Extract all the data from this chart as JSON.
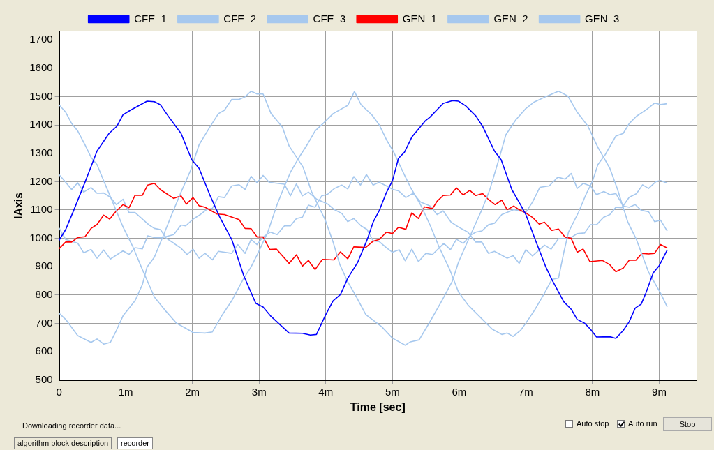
{
  "chart_data": {
    "type": "line",
    "xlabel": "Time [sec]",
    "ylabel": "IAxis",
    "legend": "top",
    "grid": true,
    "marker": "none",
    "line_style": "solid",
    "xlim": [
      0,
      9.56
    ],
    "ylim": [
      500,
      1730
    ],
    "xticks": [
      {
        "value": 0,
        "label": "0"
      },
      {
        "value": 1,
        "label": "1m"
      },
      {
        "value": 2,
        "label": "2m"
      },
      {
        "value": 3,
        "label": "3m"
      },
      {
        "value": 4,
        "label": "4m"
      },
      {
        "value": 5,
        "label": "5m"
      },
      {
        "value": 6,
        "label": "6m"
      },
      {
        "value": 7,
        "label": "7m"
      },
      {
        "value": 8,
        "label": "8m"
      },
      {
        "value": 9,
        "label": "9m"
      }
    ],
    "yticks": [
      500,
      600,
      700,
      800,
      900,
      1000,
      1100,
      1200,
      1300,
      1400,
      1500,
      1600,
      1700
    ],
    "series": [
      {
        "name": "CFE_1",
        "color": "#0000ff",
        "x": [
          0,
          0.1,
          0.21,
          0.39,
          0.57,
          0.75,
          0.87,
          0.96,
          1.07,
          1.32,
          1.43,
          1.52,
          1.65,
          1.83,
          1.99,
          2.1,
          2.26,
          2.41,
          2.59,
          2.77,
          2.95,
          3.06,
          3.17,
          3.45,
          3.65,
          3.77,
          3.86,
          4.0,
          4.11,
          4.22,
          4.33,
          4.48,
          4.62,
          4.71,
          4.8,
          4.91,
          5.0,
          5.09,
          5.18,
          5.29,
          5.49,
          5.56,
          5.76,
          5.9,
          5.99,
          6.1,
          6.25,
          6.35,
          6.53,
          6.63,
          6.79,
          6.92,
          7.0,
          7.14,
          7.3,
          7.39,
          7.57,
          7.68,
          7.77,
          7.88,
          7.97,
          8.06,
          8.26,
          8.35,
          8.46,
          8.55,
          8.64,
          8.73,
          8.8,
          8.91,
          9.0,
          9.12
        ],
        "values": [
          993,
          1031,
          1093,
          1198,
          1308,
          1370,
          1396,
          1436,
          1452,
          1484,
          1482,
          1471,
          1427,
          1370,
          1277,
          1247,
          1154,
          1075,
          996,
          868,
          771,
          758,
          727,
          666,
          665,
          659,
          661,
          731,
          780,
          802,
          859,
          916,
          995,
          1057,
          1097,
          1162,
          1203,
          1282,
          1304,
          1357,
          1414,
          1427,
          1476,
          1486,
          1484,
          1467,
          1432,
          1396,
          1308,
          1277,
          1172,
          1119,
          1084,
          996,
          899,
          855,
          776,
          750,
          714,
          701,
          679,
          652,
          653,
          647,
          675,
          706,
          754,
          768,
          807,
          878,
          904,
          959
        ]
      },
      {
        "name": "CFE_2",
        "color": "#a6c8ee",
        "x": [
          0,
          0.1,
          0.28,
          0.48,
          0.57,
          0.67,
          0.77,
          0.85,
          0.96,
          1.14,
          1.25,
          1.32,
          1.43,
          1.54,
          1.69,
          1.83,
          1.97,
          2.1,
          2.26,
          2.39,
          2.48,
          2.59,
          2.7,
          2.79,
          2.88,
          2.97,
          3.06,
          3.18,
          3.35,
          3.45,
          3.66,
          3.79,
          3.99,
          4.11,
          4.21,
          4.33,
          4.44,
          4.6,
          4.84,
          5.0,
          5.19,
          5.27,
          5.4,
          5.56,
          5.74,
          5.9,
          5.99,
          6.14,
          6.35,
          6.46,
          6.61,
          6.7,
          6.85,
          7.0,
          7.12,
          7.32,
          7.49,
          7.63,
          7.77,
          7.93,
          8.08,
          8.26,
          8.37,
          8.53,
          8.66,
          8.84,
          9.02,
          9.12
        ],
        "values": [
          736,
          714,
          657,
          633,
          645,
          627,
          633,
          670,
          727,
          780,
          837,
          899,
          934,
          996,
          1084,
          1163,
          1238,
          1330,
          1392,
          1440,
          1452,
          1490,
          1490,
          1499,
          1519,
          1509,
          1509,
          1440,
          1392,
          1326,
          1251,
          1163,
          1066,
          987,
          908,
          846,
          802,
          731,
          688,
          648,
          623,
          635,
          642,
          705,
          780,
          850,
          916,
          996,
          1106,
          1172,
          1290,
          1365,
          1418,
          1458,
          1480,
          1502,
          1519,
          1502,
          1445,
          1396,
          1321,
          1247,
          1176,
          1057,
          995,
          881,
          807,
          758
        ]
      },
      {
        "name": "CFE_3",
        "color": "#a6c8ee",
        "x": [
          0,
          0.1,
          0.19,
          0.28,
          0.39,
          0.48,
          0.57,
          0.67,
          0.82,
          0.96,
          1.11,
          1.25,
          1.43,
          1.58,
          1.76,
          1.9,
          2.01,
          2.19,
          2.3,
          2.44,
          2.59,
          2.77,
          2.88,
          2.99,
          3.13,
          3.27,
          3.36,
          3.47,
          3.59,
          3.72,
          3.84,
          4.0,
          4.11,
          4.33,
          4.43,
          4.53,
          4.69,
          4.8,
          4.91,
          5.02,
          5.16,
          5.27,
          5.42,
          5.56,
          5.7,
          5.85,
          5.99,
          6.14,
          6.35,
          6.5,
          6.64,
          6.72,
          6.81,
          6.92,
          7.0,
          7.14,
          7.28,
          7.39,
          7.49,
          7.57,
          7.64,
          7.79,
          7.9,
          8.0,
          8.08,
          8.19,
          8.35,
          8.46,
          8.55,
          8.66,
          8.8,
          8.93,
          9.02,
          9.12
        ],
        "values": [
          1471,
          1445,
          1405,
          1379,
          1330,
          1286,
          1260,
          1203,
          1119,
          1040,
          969,
          890,
          793,
          749,
          701,
          683,
          668,
          666,
          670,
          727,
          780,
          859,
          899,
          951,
          1022,
          1119,
          1172,
          1233,
          1282,
          1330,
          1379,
          1414,
          1440,
          1469,
          1518,
          1471,
          1436,
          1401,
          1348,
          1304,
          1233,
          1180,
          1119,
          1049,
          969,
          895,
          811,
          763,
          714,
          679,
          661,
          666,
          654,
          675,
          701,
          750,
          807,
          855,
          860,
          951,
          1022,
          1092,
          1154,
          1202,
          1260,
          1295,
          1361,
          1370,
          1405,
          1431,
          1453,
          1477,
          1472,
          1475
        ]
      },
      {
        "name": "GEN_1",
        "color": "#ff0000",
        "x": [
          0,
          0.1,
          0.19,
          0.28,
          0.39,
          0.48,
          0.57,
          0.67,
          0.76,
          0.86,
          0.96,
          1.05,
          1.14,
          1.25,
          1.33,
          1.43,
          1.52,
          1.72,
          1.83,
          1.91,
          2.01,
          2.1,
          2.19,
          2.37,
          2.48,
          2.7,
          2.79,
          2.88,
          2.97,
          3.06,
          3.16,
          3.26,
          3.45,
          3.56,
          3.65,
          3.74,
          3.84,
          3.95,
          4.12,
          4.22,
          4.33,
          4.42,
          4.6,
          4.71,
          4.8,
          4.91,
          5.0,
          5.09,
          5.2,
          5.29,
          5.39,
          5.48,
          5.6,
          5.67,
          5.76,
          5.87,
          5.96,
          6.06,
          6.16,
          6.25,
          6.35,
          6.44,
          6.54,
          6.64,
          6.72,
          6.82,
          6.9,
          7.0,
          7.1,
          7.2,
          7.28,
          7.39,
          7.49,
          7.59,
          7.68,
          7.77,
          7.86,
          7.96,
          8.15,
          8.26,
          8.35,
          8.46,
          8.55,
          8.65,
          8.74,
          8.84,
          8.93,
          9.02,
          9.12
        ],
        "values": [
          963,
          987,
          987,
          1003,
          1006,
          1035,
          1049,
          1082,
          1068,
          1097,
          1119,
          1108,
          1152,
          1152,
          1188,
          1194,
          1172,
          1141,
          1150,
          1121,
          1144,
          1115,
          1110,
          1086,
          1084,
          1066,
          1035,
          1034,
          1005,
          1005,
          961,
          962,
          912,
          942,
          902,
          922,
          890,
          926,
          924,
          952,
          928,
          970,
          968,
          990,
          996,
          1022,
          1017,
          1039,
          1032,
          1090,
          1070,
          1111,
          1105,
          1131,
          1151,
          1153,
          1178,
          1153,
          1169,
          1151,
          1158,
          1137,
          1119,
          1135,
          1101,
          1114,
          1101,
          1090,
          1074,
          1050,
          1057,
          1028,
          1033,
          1004,
          1000,
          951,
          962,
          918,
          922,
          907,
          882,
          895,
          923,
          923,
          947,
          945,
          947,
          978,
          966
        ]
      },
      {
        "name": "GEN_2",
        "color": "#a6c8ee",
        "x": [
          0,
          0.1,
          0.28,
          0.37,
          0.48,
          0.57,
          0.67,
          0.77,
          0.86,
          0.96,
          1.05,
          1.14,
          1.25,
          1.33,
          1.43,
          1.54,
          1.72,
          1.83,
          1.9,
          2.01,
          2.12,
          2.21,
          2.3,
          2.39,
          2.48,
          2.59,
          2.7,
          2.79,
          2.88,
          2.97,
          3.06,
          3.15,
          3.27,
          3.38,
          3.47,
          3.56,
          3.65,
          3.74,
          3.86,
          4.03,
          4.13,
          4.24,
          4.33,
          4.42,
          4.53,
          4.62,
          4.71,
          4.8,
          4.91,
          5.0,
          5.1,
          5.19,
          5.29,
          5.39,
          5.5,
          5.6,
          5.77,
          5.87,
          5.96,
          6.06,
          6.17,
          6.25,
          6.34,
          6.44,
          6.53,
          6.64,
          6.82,
          7.0,
          7.1,
          7.21,
          7.35,
          7.48,
          7.59,
          7.68,
          7.77,
          7.86,
          7.97,
          8.06,
          8.17,
          8.26,
          8.35,
          8.46,
          8.55,
          8.64,
          8.73,
          8.84,
          8.93,
          9.02,
          9.12
        ],
        "values": [
          1037,
          996,
          983,
          949,
          961,
          930,
          959,
          927,
          941,
          956,
          943,
          967,
          963,
          1009,
          1003,
          1002,
          1013,
          1047,
          1044,
          1068,
          1084,
          1101,
          1106,
          1147,
          1144,
          1185,
          1189,
          1172,
          1219,
          1196,
          1222,
          1198,
          1194,
          1191,
          1150,
          1192,
          1150,
          1163,
          1139,
          1121,
          1101,
          1088,
          1059,
          1070,
          1044,
          1031,
          991,
          989,
          967,
          951,
          960,
          921,
          962,
          918,
          947,
          943,
          982,
          960,
          997,
          982,
          1011,
          1022,
          1026,
          1048,
          1053,
          1084,
          1101,
          1092,
          1128,
          1180,
          1185,
          1216,
          1209,
          1229,
          1176,
          1194,
          1185,
          1154,
          1165,
          1154,
          1158,
          1114,
          1110,
          1119,
          1099,
          1094,
          1059,
          1064,
          1026
        ]
      },
      {
        "name": "GEN_3",
        "color": "#a6c8ee",
        "x": [
          0,
          0.1,
          0.19,
          0.28,
          0.37,
          0.48,
          0.57,
          0.67,
          0.77,
          0.86,
          0.96,
          1.05,
          1.14,
          1.34,
          1.43,
          1.52,
          1.61,
          1.72,
          1.83,
          1.92,
          2.01,
          2.1,
          2.19,
          2.3,
          2.39,
          2.59,
          2.68,
          2.79,
          2.88,
          2.97,
          3.06,
          3.17,
          3.27,
          3.38,
          3.47,
          3.56,
          3.65,
          3.74,
          3.84,
          3.94,
          4.03,
          4.13,
          4.24,
          4.33,
          4.42,
          4.52,
          4.61,
          4.71,
          4.8,
          4.91,
          5.01,
          5.09,
          5.2,
          5.31,
          5.42,
          5.56,
          5.67,
          5.76,
          5.88,
          5.99,
          6.13,
          6.25,
          6.34,
          6.44,
          6.53,
          6.72,
          6.81,
          6.9,
          7.0,
          7.1,
          7.28,
          7.38,
          7.49,
          7.59,
          7.68,
          7.77,
          7.88,
          7.97,
          8.06,
          8.17,
          8.26,
          8.35,
          8.44,
          8.55,
          8.66,
          8.75,
          8.84,
          8.95,
          9.02,
          9.12
        ],
        "values": [
          1225,
          1198,
          1172,
          1196,
          1163,
          1179,
          1159,
          1160,
          1145,
          1119,
          1138,
          1091,
          1091,
          1049,
          1035,
          1031,
          1000,
          983,
          965,
          943,
          962,
          930,
          947,
          924,
          954,
          947,
          978,
          947,
          996,
          978,
          1005,
          1022,
          1013,
          1044,
          1044,
          1070,
          1075,
          1117,
          1110,
          1150,
          1156,
          1176,
          1188,
          1174,
          1218,
          1188,
          1225,
          1188,
          1198,
          1185,
          1172,
          1168,
          1144,
          1159,
          1128,
          1115,
          1084,
          1097,
          1057,
          1040,
          1022,
          987,
          987,
          947,
          954,
          930,
          939,
          912,
          960,
          938,
          976,
          962,
          999,
          999,
          1003,
          1017,
          1019,
          1048,
          1048,
          1075,
          1084,
          1110,
          1108,
          1145,
          1158,
          1189,
          1176,
          1200,
          1204,
          1195
        ]
      }
    ],
    "annotations": [
      "Downloading recorder data...",
      "Auto stop",
      "Auto run",
      "Stop",
      "algorithm block description",
      "recorder"
    ]
  }
}
